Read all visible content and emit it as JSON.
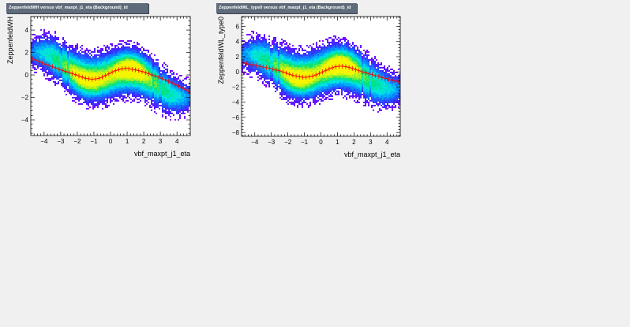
{
  "canvas_background": "#f0f0f0",
  "plot_background": "#ffffff",
  "title_box_color": "#5f6b7a",
  "profile_color": "#ff0000",
  "chart_data": [
    {
      "type": "heatmap",
      "title": "ZeppenfeldWH versus vbf_maxpt_j1_eta (Background)_id",
      "xlabel": "vbf_maxpt_j1_eta",
      "ylabel": "ZeppenfeldWH",
      "xlim": [
        -4.8,
        4.8
      ],
      "ylim": [
        -5.4,
        5.2
      ],
      "xticks": [
        -4,
        -3,
        -2,
        -1,
        0,
        1,
        2,
        3,
        4
      ],
      "xtick_labels": [
        "−4",
        "−3",
        "−2",
        "−1",
        "0",
        "1",
        "2",
        "3",
        "4"
      ],
      "yticks": [
        -4,
        -2,
        0,
        2,
        4
      ],
      "ytick_labels": [
        "−4",
        "−2",
        "0",
        "2",
        "4"
      ],
      "grid": false,
      "legend": "none",
      "band_amplitude": 0.7,
      "band_slope": -0.3,
      "band_half_width": 2.8,
      "profile": {
        "x": [
          -4.7,
          -4.5,
          -4.3,
          -4.1,
          -3.9,
          -3.7,
          -3.5,
          -3.3,
          -3.1,
          -2.9,
          -2.7,
          -2.5,
          -2.3,
          -2.1,
          -1.9,
          -1.7,
          -1.5,
          -1.3,
          -1.1,
          -0.9,
          -0.7,
          -0.5,
          -0.3,
          -0.1,
          0.1,
          0.3,
          0.5,
          0.7,
          0.9,
          1.1,
          1.3,
          1.5,
          1.7,
          1.9,
          2.1,
          2.3,
          2.5,
          2.7,
          2.9,
          3.1,
          3.3,
          3.5,
          3.7,
          3.9,
          4.1,
          4.3,
          4.5,
          4.7
        ],
        "y": [
          1.45,
          1.32,
          1.2,
          1.08,
          0.95,
          0.85,
          0.75,
          0.62,
          0.5,
          0.4,
          0.3,
          0.22,
          0.12,
          0.02,
          -0.1,
          -0.2,
          -0.3,
          -0.35,
          -0.38,
          -0.35,
          -0.3,
          -0.2,
          -0.05,
          0.1,
          0.25,
          0.38,
          0.48,
          0.55,
          0.58,
          0.55,
          0.5,
          0.45,
          0.38,
          0.3,
          0.2,
          0.1,
          0.0,
          -0.1,
          -0.2,
          -0.32,
          -0.45,
          -0.58,
          -0.7,
          -0.85,
          -1.0,
          -1.15,
          -1.3,
          -1.48
        ]
      }
    },
    {
      "type": "heatmap",
      "title": "ZeppenfeldWL_type0 versus vbf_maxpt_j1_eta (Background)_id",
      "xlabel": "vbf_maxpt_j1_eta",
      "ylabel": "ZeppenfeldWL_type0",
      "xlim": [
        -4.8,
        4.8
      ],
      "ylim": [
        -8.5,
        7.3
      ],
      "xticks": [
        -4,
        -3,
        -2,
        -1,
        0,
        1,
        2,
        3,
        4
      ],
      "xtick_labels": [
        "−4",
        "−3",
        "−2",
        "−1",
        "0",
        "1",
        "2",
        "3",
        "4"
      ],
      "yticks": [
        -8,
        -6,
        -4,
        -2,
        0,
        2,
        4,
        6
      ],
      "ytick_labels": [
        "−8",
        "−6",
        "−4",
        "−2",
        "0",
        "2",
        "4",
        "6"
      ],
      "grid": false,
      "legend": "none",
      "band_amplitude": 1.0,
      "band_slope": -0.3,
      "band_half_width": 4.2,
      "profile": {
        "x": [
          -4.7,
          -4.5,
          -4.3,
          -4.1,
          -3.9,
          -3.7,
          -3.5,
          -3.3,
          -3.1,
          -2.9,
          -2.7,
          -2.5,
          -2.3,
          -2.1,
          -1.9,
          -1.7,
          -1.5,
          -1.3,
          -1.1,
          -0.9,
          -0.7,
          -0.5,
          -0.3,
          -0.1,
          0.1,
          0.3,
          0.5,
          0.7,
          0.9,
          1.1,
          1.3,
          1.5,
          1.7,
          1.9,
          2.1,
          2.3,
          2.5,
          2.7,
          2.9,
          3.1,
          3.3,
          3.5,
          3.7,
          3.9,
          4.1,
          4.3,
          4.5,
          4.7
        ],
        "y": [
          1.2,
          1.1,
          1.0,
          0.95,
          0.85,
          0.75,
          0.65,
          0.55,
          0.45,
          0.35,
          0.25,
          0.15,
          0.0,
          -0.15,
          -0.3,
          -0.45,
          -0.55,
          -0.65,
          -0.7,
          -0.7,
          -0.65,
          -0.55,
          -0.4,
          -0.2,
          0.0,
          0.2,
          0.4,
          0.55,
          0.7,
          0.75,
          0.75,
          0.7,
          0.6,
          0.45,
          0.3,
          0.15,
          0.0,
          -0.1,
          -0.25,
          -0.35,
          -0.5,
          -0.6,
          -0.75,
          -0.85,
          -1.0,
          -1.1,
          -1.2,
          -1.3
        ]
      }
    }
  ]
}
